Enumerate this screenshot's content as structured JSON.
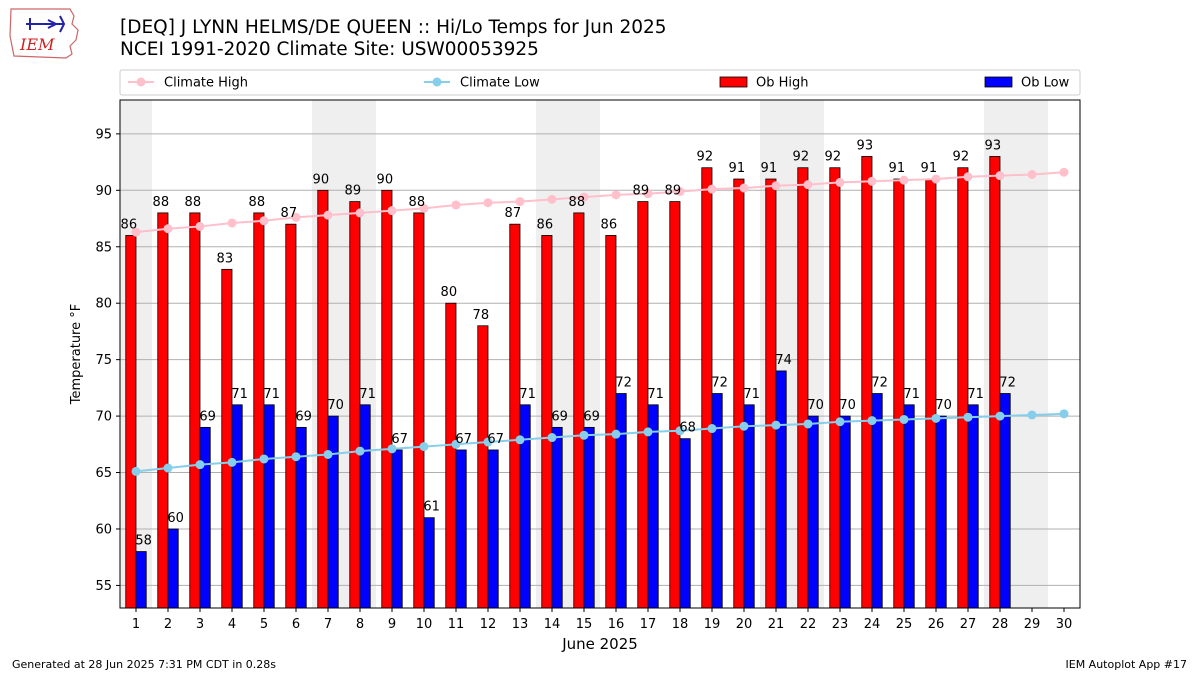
{
  "logo": {
    "text": "IEM"
  },
  "header": {
    "title": "[DEQ] J LYNN HELMS/DE QUEEN :: Hi/Lo Temps for Jun 2025",
    "subtitle": "NCEI 1991-2020 Climate Site: USW00053925"
  },
  "footer": {
    "left": "Generated at 28 Jun 2025 7:31 PM CDT in 0.28s",
    "right": "IEM Autoplot App #17"
  },
  "chart_data": {
    "type": "bar",
    "xlabel": "June 2025",
    "ylabel": "Temperature °F",
    "ylim": [
      53,
      98
    ],
    "yticks": [
      55,
      60,
      65,
      70,
      75,
      80,
      85,
      90,
      95
    ],
    "grid": true,
    "legend_position": "top",
    "weekend_shading_days": [
      1,
      7,
      8,
      14,
      15,
      21,
      22,
      28,
      29
    ],
    "days": [
      1,
      2,
      3,
      4,
      5,
      6,
      7,
      8,
      9,
      10,
      11,
      12,
      13,
      14,
      15,
      16,
      17,
      18,
      19,
      20,
      21,
      22,
      23,
      24,
      25,
      26,
      27,
      28,
      29,
      30
    ],
    "series": [
      {
        "name": "Climate High",
        "kind": "line",
        "color": "#ffc0cb",
        "values": [
          86.3,
          86.6,
          86.8,
          87.1,
          87.3,
          87.6,
          87.8,
          88.0,
          88.2,
          88.4,
          88.7,
          88.9,
          89.0,
          89.2,
          89.4,
          89.6,
          89.7,
          89.9,
          90.1,
          90.2,
          90.4,
          90.5,
          90.7,
          90.8,
          90.9,
          91.0,
          91.2,
          91.3,
          91.4,
          91.6
        ]
      },
      {
        "name": "Climate Low",
        "kind": "line",
        "color": "#87ceeb",
        "values": [
          65.1,
          65.4,
          65.7,
          65.9,
          66.2,
          66.4,
          66.6,
          66.9,
          67.1,
          67.3,
          67.5,
          67.7,
          67.9,
          68.1,
          68.3,
          68.4,
          68.6,
          68.7,
          68.9,
          69.1,
          69.2,
          69.3,
          69.5,
          69.6,
          69.7,
          69.8,
          69.9,
          70.0,
          70.1,
          70.2
        ]
      },
      {
        "name": "Ob High",
        "kind": "bar",
        "color": "#ff0000",
        "values": [
          86,
          88,
          88,
          83,
          88,
          87,
          90,
          89,
          90,
          88,
          80,
          78,
          87,
          86,
          88,
          86,
          89,
          89,
          92,
          91,
          91,
          92,
          92,
          93,
          91,
          91,
          92,
          93
        ]
      },
      {
        "name": "Ob Low",
        "kind": "bar",
        "color": "#0000ff",
        "values": [
          58,
          60,
          69,
          71,
          71,
          69,
          70,
          71,
          67,
          61,
          67,
          67,
          71,
          69,
          69,
          72,
          71,
          68,
          72,
          71,
          74,
          70,
          70,
          72,
          71,
          70,
          71,
          72
        ]
      }
    ]
  }
}
